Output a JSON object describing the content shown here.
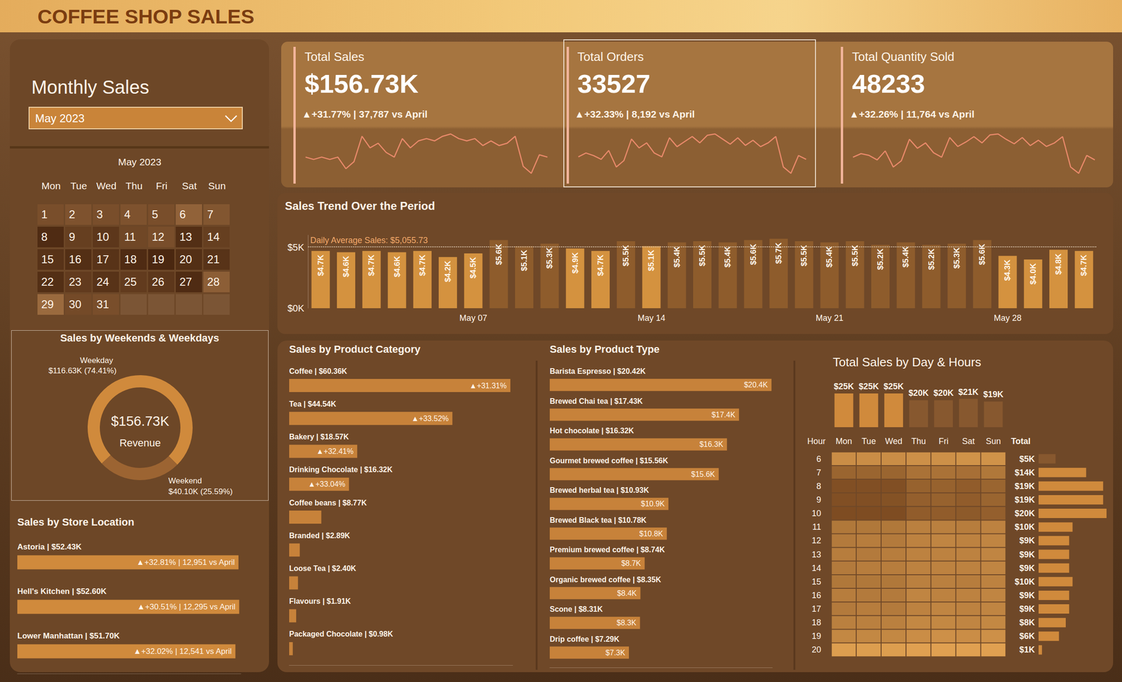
{
  "title": "COFFEE SHOP SALES",
  "filter": {
    "label": "Monthly Sales",
    "selected": "May 2023"
  },
  "calendar": {
    "title": "May 2023",
    "weekdays": [
      "Mon",
      "Tue",
      "Wed",
      "Thu",
      "Fri",
      "Sat",
      "Sun"
    ],
    "weeks": [
      [
        1,
        2,
        3,
        4,
        5,
        6,
        7
      ],
      [
        8,
        9,
        10,
        11,
        12,
        13,
        14
      ],
      [
        15,
        16,
        17,
        18,
        19,
        20,
        21
      ],
      [
        22,
        23,
        24,
        25,
        26,
        27,
        28
      ],
      [
        29,
        30,
        31,
        null,
        null,
        null,
        null
      ]
    ]
  },
  "kpis": [
    {
      "title": "Total Sales",
      "value": "$156.73K",
      "change": "▲+31.77% | 37,787 vs April",
      "color": "#E8896A",
      "sparkline": [
        4.7,
        4.6,
        4.7,
        4.6,
        4.7,
        4.2,
        4.5,
        5.6,
        5.1,
        5.3,
        4.9,
        4.7,
        5.5,
        5.1,
        5.4,
        5.5,
        5.4,
        5.6,
        5.7,
        5.5,
        5.4,
        5.5,
        5.2,
        5.4,
        5.2,
        5.3,
        5.6,
        4.3,
        4.0,
        4.8,
        4.7
      ]
    },
    {
      "title": "Total Orders",
      "value": 33527,
      "change": "▲+32.33% | 8,192 vs April",
      "color": "#E8896A",
      "sparkline": [
        1010,
        1040,
        1020,
        990,
        1060,
        930,
        980,
        1150,
        1080,
        1120,
        1040,
        1010,
        1160,
        1090,
        1130,
        1170,
        1120,
        1180,
        1190,
        1150,
        1110,
        1160,
        1100,
        1140,
        1090,
        1120,
        1170,
        930,
        880,
        1020,
        990
      ]
    },
    {
      "title": "Total Quantity Sold",
      "value": 48233,
      "change": "▲+32.26% | 11,764 vs April",
      "color": "#E8896A",
      "sparkline": [
        1450,
        1490,
        1470,
        1420,
        1520,
        1340,
        1410,
        1650,
        1550,
        1610,
        1500,
        1450,
        1670,
        1570,
        1620,
        1680,
        1610,
        1700,
        1710,
        1650,
        1600,
        1670,
        1580,
        1640,
        1570,
        1610,
        1680,
        1340,
        1270,
        1470,
        1420
      ]
    }
  ],
  "chart_data": [
    {
      "type": "bar",
      "title": "Sales Trend Over the Period",
      "categories": [
        null,
        null,
        null,
        null,
        null,
        null,
        "May 07",
        null,
        null,
        null,
        null,
        null,
        null,
        "May 14",
        null,
        null,
        null,
        null,
        null,
        null,
        "May 21",
        null,
        null,
        null,
        null,
        null,
        null,
        "May 28",
        null,
        null,
        null
      ],
      "values": [
        4700,
        4600,
        4700,
        4600,
        4700,
        4200,
        4500,
        5600,
        5100,
        5300,
        4900,
        4700,
        5500,
        5100,
        5400,
        5500,
        5400,
        5600,
        5700,
        5500,
        5400,
        5500,
        5200,
        5400,
        5200,
        5300,
        5600,
        4300,
        4000,
        4800,
        4700
      ],
      "value_labels": [
        "$4.7K",
        "$4.6K",
        "$4.7K",
        "$4.6K",
        "$4.7K",
        "$4.2K",
        "$4.5K",
        "$5.6K",
        "$5.1K",
        "$5.3K",
        "$4.9K",
        "$4.7K",
        "$5.5K",
        "$5.1K",
        "$5.4K",
        "$5.5K",
        "$5.4K",
        "$5.6K",
        "$5.7K",
        "$5.5K",
        "$5.4K",
        "$5.5K",
        "$5.2K",
        "$5.4K",
        "$5.2K",
        "$5.3K",
        "$5.6K",
        "$4.3K",
        "$4.0K",
        "$4.8K",
        "$4.7K"
      ],
      "colors": [
        "#D4923F",
        "#D4923F",
        "#D4923F",
        "#D4923F",
        "#D4923F",
        "#D4923F",
        "#D4923F",
        "#8E5C2C",
        "#8E5C2C",
        "#8E5C2C",
        "#D4923F",
        "#D4923F",
        "#8E5C2C",
        "#D4923F",
        "#8E5C2C",
        "#8E5C2C",
        "#8E5C2C",
        "#8E5C2C",
        "#8E5C2C",
        "#8E5C2C",
        "#8E5C2C",
        "#8E5C2C",
        "#8E5C2C",
        "#8E5C2C",
        "#8E5C2C",
        "#8E5C2C",
        "#8E5C2C",
        "#D4923F",
        "#D4923F",
        "#D4923F",
        "#D4923F"
      ],
      "ylim": [
        0,
        6000
      ],
      "yticks": [
        {
          "value": 0,
          "label": "$0K"
        },
        {
          "value": 5000,
          "label": "$5K"
        }
      ],
      "average": {
        "value": 5055.73,
        "label": "Daily Average Sales: $5,055.73"
      },
      "data_labels": true,
      "grid": false
    },
    {
      "type": "pie",
      "title": "Sales by Weekends & Weekdays",
      "categories": [
        "Weekday",
        "Weekend"
      ],
      "values": [
        116.63,
        40.1
      ],
      "value_labels": [
        "$116.63K (74.41%)",
        "$40.10K (25.59%)"
      ],
      "colors": [
        "#D08A3C",
        "#9C6432"
      ],
      "center_value": "$156.73K",
      "center_label": "Revenue",
      "data_labels": true
    },
    {
      "type": "bar",
      "orientation": "horizontal",
      "title": "Sales by Store Location",
      "categories": [
        "Astoria | $52.43K",
        "Hell's Kitchen | $52.60K",
        "Lower Manhattan | $51.70K"
      ],
      "values": [
        52.43,
        52.6,
        51.7
      ],
      "annotations": [
        "▲+32.81% | 12,951 vs April",
        "▲+30.51% | 12,295 vs April",
        "▲+32.02% | 12,541 vs April"
      ],
      "xlim": [
        0,
        53
      ],
      "color": "#D08A3C",
      "tick_labels": false,
      "data_labels": false,
      "grid": false
    },
    {
      "type": "bar",
      "orientation": "horizontal",
      "title": "Sales by Product Category",
      "categories": [
        "Coffee | $60.36K",
        "Tea | $44.54K",
        "Bakery | $18.57K",
        "Drinking Chocolate | $16.32K",
        "Coffee beans | $8.77K",
        "Branded | $2.89K",
        "Loose Tea | $2.40K",
        "Flavours | $1.91K",
        "Packaged Chocolate | $0.98K"
      ],
      "values": [
        60.36,
        44.54,
        18.57,
        16.32,
        8.77,
        2.89,
        2.4,
        1.91,
        0.98
      ],
      "annotations": [
        "▲+31.31%",
        "▲+33.52%",
        "▲+32.41%",
        "▲+33.04%",
        null,
        null,
        null,
        null,
        null
      ],
      "xlim": [
        0,
        61
      ],
      "color": "#C7823A",
      "tick_labels": false,
      "data_labels": false,
      "grid": false
    },
    {
      "type": "bar",
      "orientation": "horizontal",
      "title": "Sales by Product Type",
      "categories": [
        "Barista Espresso | $20.42K",
        "Brewed Chai tea | $17.43K",
        "Hot chocolate | $16.32K",
        "Gourmet brewed coffee | $15.56K",
        "Brewed herbal tea | $10.93K",
        "Brewed Black tea | $10.78K",
        "Premium brewed coffee | $8.74K",
        "Organic brewed coffee | $8.35K",
        "Scone | $8.31K",
        "Drip coffee | $7.29K"
      ],
      "values": [
        20.42,
        17.43,
        16.32,
        15.56,
        10.93,
        10.78,
        8.74,
        8.35,
        8.31,
        7.29
      ],
      "value_labels": [
        "$20.4K",
        "$17.4K",
        "$16.3K",
        "$15.6K",
        "$10.9K",
        "$10.8K",
        "$8.7K",
        "$8.4K",
        "$8.3K",
        "$7.3K"
      ],
      "xlim": [
        0,
        20.5
      ],
      "color": "#C7823A",
      "tick_labels": false,
      "data_labels": true,
      "grid": false
    },
    {
      "type": "heatmap",
      "title": "Total Sales by Day & Hours",
      "x": [
        "Mon",
        "Tue",
        "Wed",
        "Thu",
        "Fri",
        "Sat",
        "Sun"
      ],
      "y": [
        6,
        7,
        8,
        9,
        10,
        11,
        12,
        13,
        14,
        15,
        16,
        17,
        18,
        19,
        20
      ],
      "y_label": "Hour",
      "total_label": "Total",
      "cells": [
        [
          0.8,
          0.8,
          0.8,
          0.7,
          0.7,
          0.6,
          0.6
        ],
        [
          2.3,
          2.3,
          2.3,
          1.8,
          1.8,
          1.9,
          1.6
        ],
        [
          3.1,
          3.1,
          3.1,
          2.4,
          2.4,
          2.6,
          2.3
        ],
        [
          3.1,
          3.1,
          3.0,
          2.5,
          2.4,
          2.6,
          2.3
        ],
        [
          3.2,
          3.2,
          3.2,
          2.6,
          2.6,
          2.7,
          2.5
        ],
        [
          1.6,
          1.6,
          1.6,
          1.3,
          1.3,
          1.4,
          1.2
        ],
        [
          1.5,
          1.4,
          1.5,
          1.2,
          1.1,
          1.2,
          1.1
        ],
        [
          1.4,
          1.5,
          1.4,
          1.2,
          1.2,
          1.2,
          1.1
        ],
        [
          1.5,
          1.4,
          1.4,
          1.2,
          1.2,
          1.2,
          1.1
        ],
        [
          1.6,
          1.6,
          1.6,
          1.3,
          1.3,
          1.4,
          1.2
        ],
        [
          1.4,
          1.5,
          1.5,
          1.1,
          1.2,
          1.2,
          1.1
        ],
        [
          1.5,
          1.4,
          1.5,
          1.2,
          1.1,
          1.2,
          1.1
        ],
        [
          1.3,
          1.3,
          1.3,
          1.0,
          1.0,
          1.1,
          1.0
        ],
        [
          1.0,
          1.0,
          1.0,
          0.8,
          0.7,
          0.8,
          0.7
        ],
        [
          0.2,
          0.2,
          0.2,
          0.1,
          0.1,
          0.1,
          0.1
        ]
      ],
      "color_range": [
        0,
        3.5
      ],
      "column_totals": {
        "values": [
          25,
          25,
          25,
          20,
          20,
          21,
          19
        ],
        "value_labels": [
          "$25K",
          "$25K",
          "$25K",
          "$20K",
          "$20K",
          "$21K",
          "$19K"
        ],
        "colors": [
          "#D08A3C",
          "#D08A3C",
          "#D08A3C",
          "#87582F",
          "#87582F",
          "#87582F",
          "#87582F"
        ],
        "ylim": [
          0,
          25
        ]
      },
      "row_totals": {
        "values": [
          5,
          14,
          19,
          19,
          20,
          10,
          9,
          9,
          9,
          10,
          9,
          9,
          8,
          6,
          1
        ],
        "value_labels": [
          "$5K",
          "$14K",
          "$19K",
          "$19K",
          "$20K",
          "$10K",
          "$9K",
          "$9K",
          "$9K",
          "$10K",
          "$9K",
          "$9K",
          "$8K",
          "$6K",
          "$1K"
        ],
        "colors": [
          "#87582F",
          "#D08A3C",
          "#D08A3C",
          "#D08A3C",
          "#D08A3C",
          "#D08A3C",
          "#D08A3C",
          "#D08A3C",
          "#D08A3C",
          "#D08A3C",
          "#D08A3C",
          "#D08A3C",
          "#D08A3C",
          "#D08A3C",
          "#D08A3C"
        ],
        "xlim": [
          0,
          20
        ]
      },
      "tick_labels": true,
      "grid": false
    }
  ]
}
